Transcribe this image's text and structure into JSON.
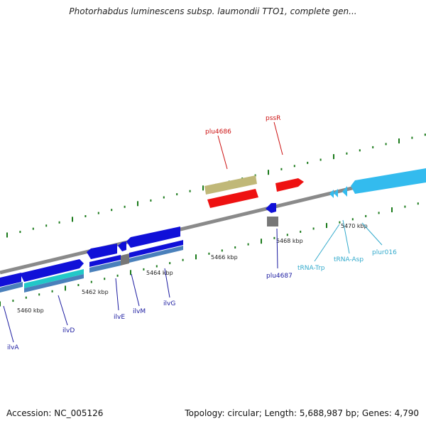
{
  "title": "Photorhabdus luminescens subsp. laumondii TTO1, complete gen...",
  "footer": {
    "accession": "Accession: NC_005126",
    "summary": "Topology: circular; Length: 5,688,987 bp; Genes: 4,790"
  },
  "colors": {
    "backbone": "#888888",
    "ticks": "#1a7a1a",
    "cds_blue": "#1010d8",
    "cds_red": "#ee1111",
    "pseudo_tan": "#c0b878",
    "trna_cyan": "#33bbee",
    "teal": "#22c8c8",
    "steel": "#4a80bb",
    "label_blue": "#1a1aa0",
    "label_red": "#cc1111",
    "label_cyan": "#33aacc"
  },
  "scale_labels": [
    "5460 kbp",
    "5462 kbp",
    "5464 kbp",
    "5466 kbp",
    "5468 kbp",
    "5470 kbp"
  ],
  "genes": [
    {
      "name": "ilvA",
      "color": "label_blue"
    },
    {
      "name": "ilvD",
      "color": "label_blue"
    },
    {
      "name": "ilvE",
      "color": "label_blue"
    },
    {
      "name": "ilvM",
      "color": "label_blue"
    },
    {
      "name": "ilvG",
      "color": "label_blue"
    },
    {
      "name": "plu4687",
      "color": "label_blue"
    },
    {
      "name": "plu4686",
      "color": "label_red"
    },
    {
      "name": "pssR",
      "color": "label_red"
    },
    {
      "name": "tRNA-Trp",
      "color": "label_cyan"
    },
    {
      "name": "tRNA-Asp",
      "color": "label_cyan"
    },
    {
      "name": "plur016",
      "color": "label_cyan"
    }
  ]
}
